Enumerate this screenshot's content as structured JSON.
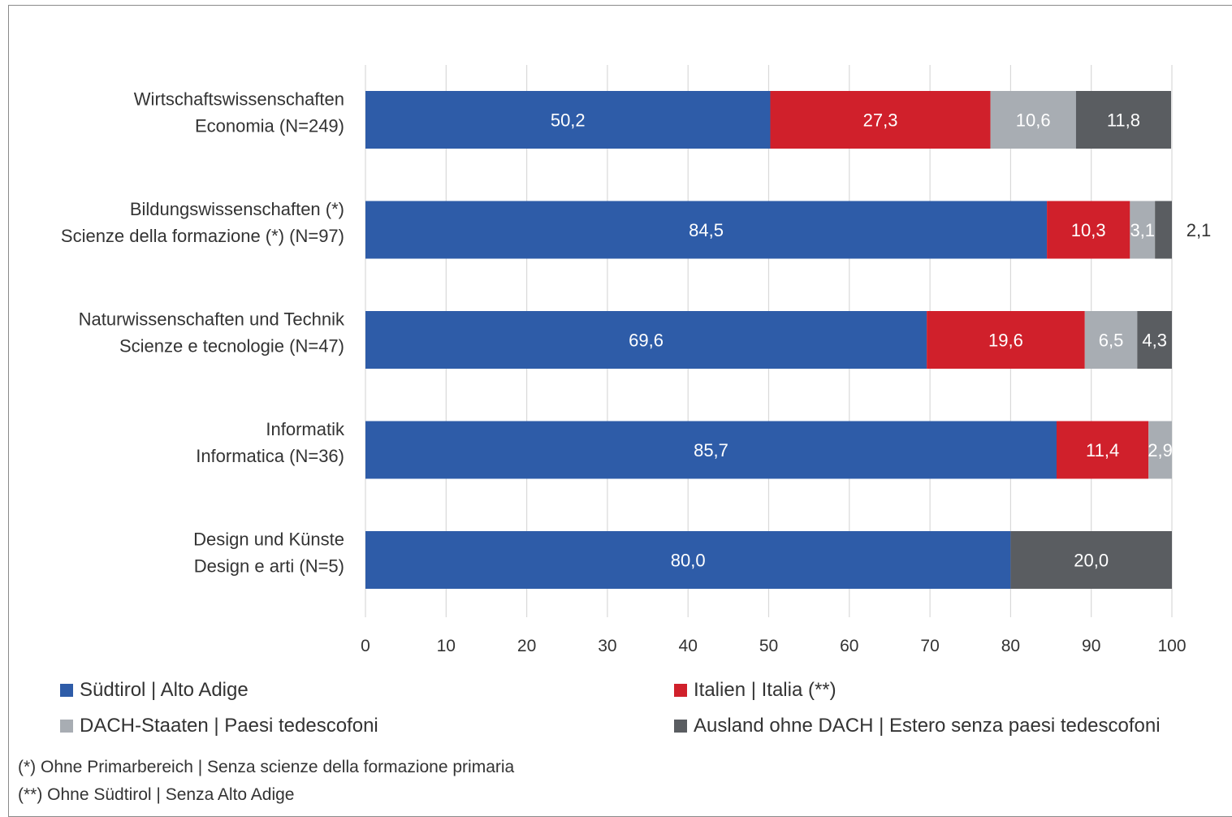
{
  "chart_data": {
    "type": "bar",
    "orientation": "horizontal",
    "stacked": true,
    "categories": [
      [
        "Wirtschaftswissenschaften",
        "Economia (N=249)"
      ],
      [
        "Bildungswissenschaften (*)",
        "Scienze della formazione (*) (N=97)"
      ],
      [
        "Naturwissenschaften und Technik",
        "Scienze e tecnologie (N=47)"
      ],
      [
        "Informatik",
        "Informatica (N=36)"
      ],
      [
        "Design und Künste",
        "Design e arti (N=5)"
      ]
    ],
    "series": [
      {
        "name": "Südtirol | Alto Adige",
        "color": "#2e5ca8",
        "values": [
          50.2,
          84.5,
          69.6,
          85.7,
          80.0
        ],
        "labels": [
          "50,2",
          "84,5",
          "69,6",
          "85,7",
          "80,0"
        ]
      },
      {
        "name": "Italien | Italia (**)",
        "color": "#d0202b",
        "values": [
          27.3,
          10.3,
          19.6,
          11.4,
          0
        ],
        "labels": [
          "27,3",
          "10,3",
          "19,6",
          "11,4",
          ""
        ]
      },
      {
        "name": "DACH-Staaten | Paesi tedescofoni",
        "color": "#a8adb3",
        "values": [
          10.6,
          3.1,
          6.5,
          2.9,
          0
        ],
        "labels": [
          "10,6",
          "3,1",
          "6,5",
          "2,9",
          ""
        ]
      },
      {
        "name": "Ausland ohne DACH | Estero senza paesi tedescofoni",
        "color": "#5a5d61",
        "values": [
          11.8,
          2.1,
          4.3,
          0,
          20.0
        ],
        "labels": [
          "11,8",
          "2,1",
          "4,3",
          "",
          "20,0"
        ]
      }
    ],
    "xlim": [
      0,
      100
    ],
    "xticks": [
      "0",
      "10",
      "20",
      "30",
      "40",
      "50",
      "60",
      "70",
      "80",
      "90",
      "100"
    ],
    "grid": "vertical",
    "legend_position": "bottom"
  },
  "footnotes": [
    "(*) Ohne Primarbereich | Senza scienze della formazione primaria",
    "(**) Ohne Südtirol | Senza Alto Adige"
  ]
}
